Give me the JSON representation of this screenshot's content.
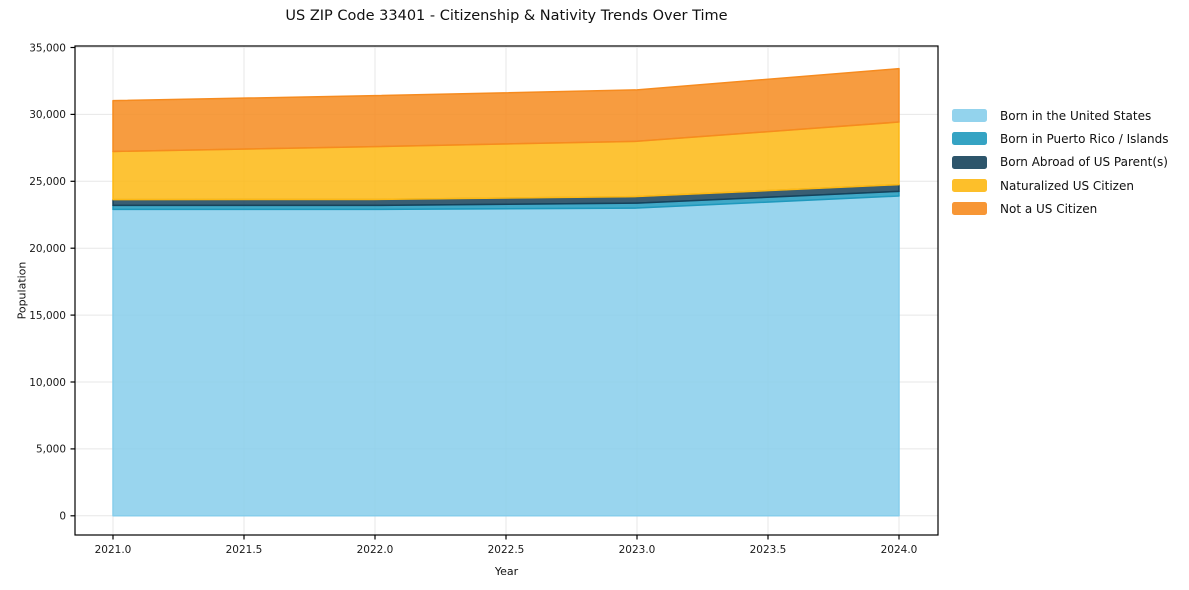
{
  "chart_data": {
    "type": "area",
    "stacked": true,
    "title": "US ZIP Code 33401 - Citizenship & Nativity Trends Over Time",
    "xlabel": "Year",
    "ylabel": "Population",
    "x": [
      2021,
      2022,
      2023,
      2024
    ],
    "series": [
      {
        "name": "Born in the United States",
        "color": "#87CEEB",
        "values": [
          22900,
          22900,
          23000,
          23900
        ]
      },
      {
        "name": "Born in Puerto Rico / Islands",
        "color": "#1F99BD",
        "values": [
          300,
          300,
          370,
          350
        ]
      },
      {
        "name": "Born Abroad of US Parent(s)",
        "color": "#16425B",
        "values": [
          430,
          440,
          490,
          500
        ]
      },
      {
        "name": "Naturalized US Citizen",
        "color": "#FDB813",
        "values": [
          3600,
          3950,
          4130,
          4680
        ]
      },
      {
        "name": "Not a US Citizen",
        "color": "#F68B1F",
        "values": [
          3800,
          3810,
          3840,
          3990
        ]
      }
    ],
    "totals": [
      31030,
      31400,
      31830,
      33420
    ],
    "xticks": {
      "values": [
        2021,
        2021.5,
        2022,
        2022.5,
        2023,
        2023.5,
        2024
      ],
      "labels": [
        "2021.0",
        "2021.5",
        "2022.0",
        "2022.5",
        "2023.0",
        "2023.5",
        "2024.0"
      ]
    },
    "yticks": {
      "values": [
        0,
        5000,
        10000,
        15000,
        20000,
        25000,
        30000,
        35000
      ],
      "labels": [
        "0",
        "5,000",
        "10,000",
        "15,000",
        "20,000",
        "25,000",
        "30,000",
        "35,000"
      ]
    },
    "ylim": [
      0,
      35000
    ],
    "xlim": [
      2021,
      2024
    ],
    "grid": true,
    "fill_opacity": 0.85,
    "legend_position": "right"
  },
  "style": {
    "grid_color": "#e7e7e7",
    "spine_color": "#000000",
    "tick_text_color": "#1a1a1a"
  }
}
